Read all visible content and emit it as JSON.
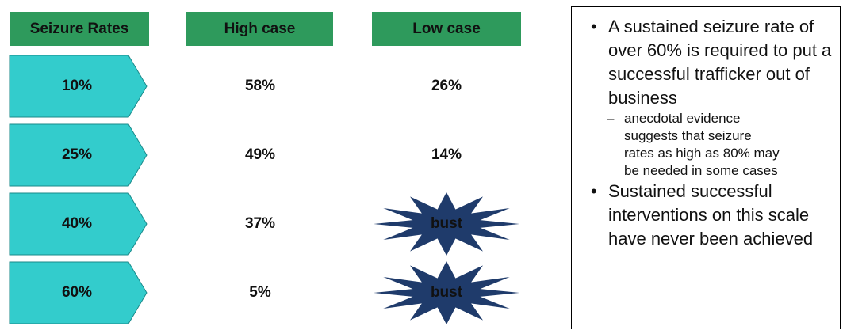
{
  "table": {
    "headers": [
      "Seizure Rates",
      "High case",
      "Low case"
    ],
    "rows": [
      [
        "10%",
        "58%",
        "26%"
      ],
      [
        "25%",
        "49%",
        "14%"
      ],
      [
        "40%",
        "37%",
        "bust"
      ],
      [
        "60%",
        "5%",
        "bust"
      ]
    ]
  },
  "notes": {
    "bullets": [
      {
        "text": "A sustained seizure rate of over 60% is required to put a successful trafficker out of business",
        "sub": [
          "anecdotal evidence suggests that seizure rates as high as 80% may be needed in some cases"
        ]
      },
      {
        "text": "Sustained successful interventions on this scale have never been achieved",
        "sub": []
      }
    ]
  }
}
